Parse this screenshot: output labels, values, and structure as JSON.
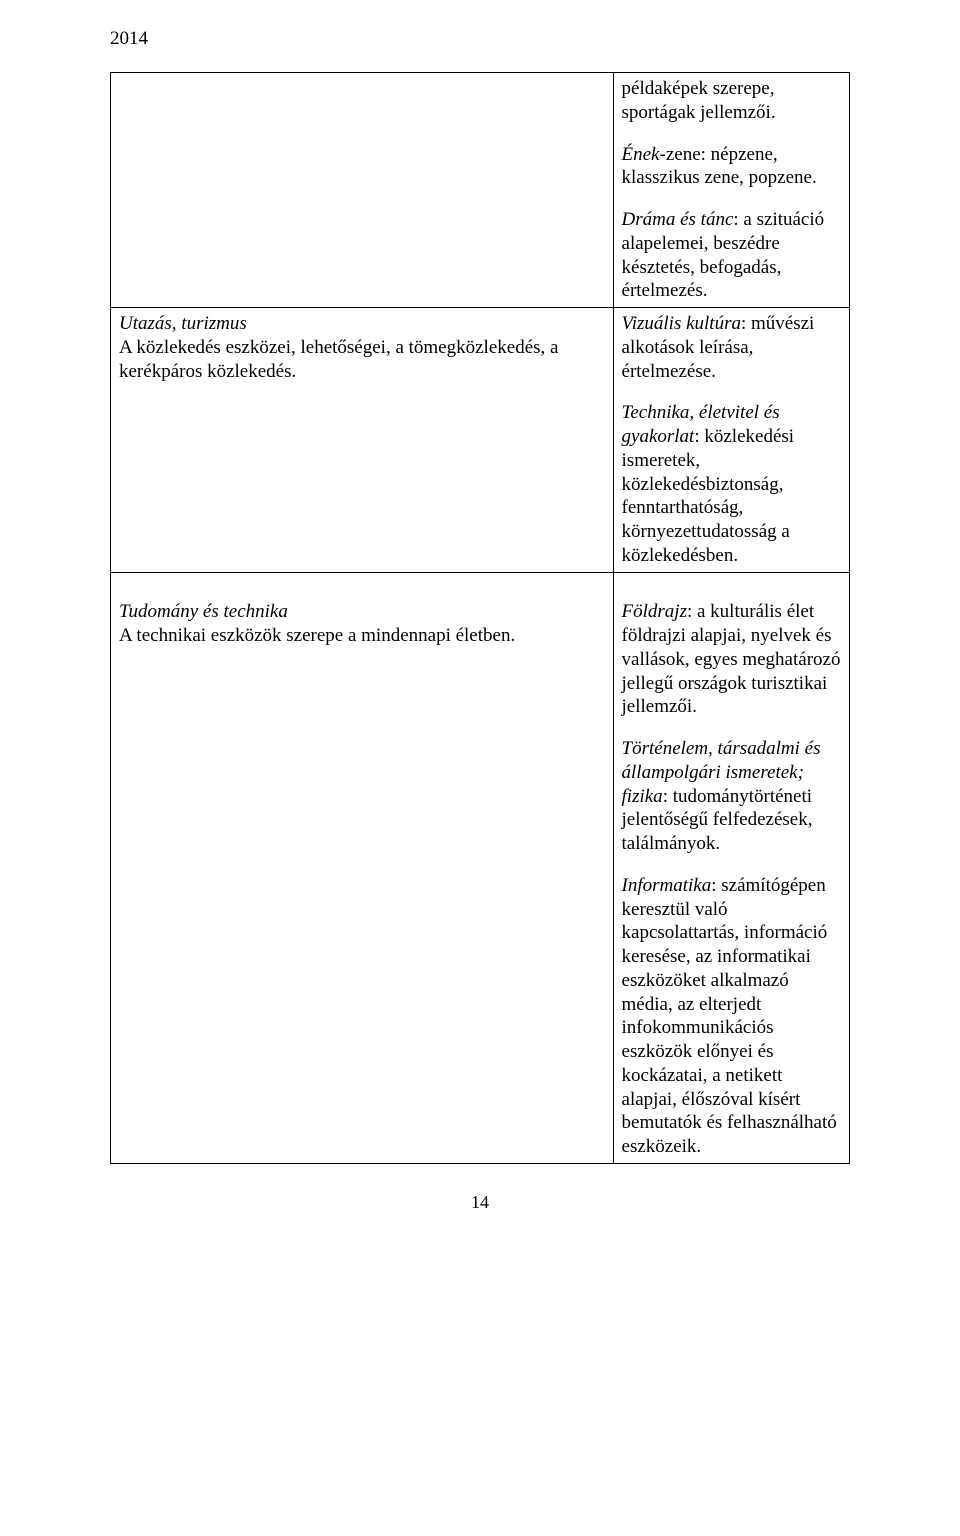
{
  "header": {
    "year": "2014"
  },
  "footer": {
    "page_number": "14"
  },
  "table": {
    "rows": [
      {
        "left": "",
        "right_blocks": [
          {
            "prefix": "",
            "body": "példaképek szerepe, sportágak jellemzői."
          },
          {
            "prefix": "Ének",
            "body": "-zene: népzene, klasszikus zene, popzene."
          },
          {
            "prefix": "Dráma és tánc",
            "body": ": a szituáció alapelemei, beszédre késztetés, befogadás, értelmezés."
          }
        ]
      },
      {
        "left_title": "Utazás, turizmus",
        "left_body": "A közlekedés eszközei, lehetőségei, a tömegközlekedés, a kerékpáros közlekedés.",
        "right_blocks": [
          {
            "prefix": "Vizuális kultúra",
            "body": ": művészi alkotások leírása, értelmezése."
          },
          {
            "prefix": "Technika, életvitel és gyakorlat",
            "body": ": közlekedési ismeretek, közlekedésbiztonság, fenntarthatóság, környezettudatosság a közlekedésben."
          }
        ]
      },
      {
        "left_title": "Tudomány és technika",
        "left_body": "A technikai eszközök szerepe a mindennapi életben.",
        "right_blocks": [
          {
            "prefix": "Földrajz",
            "body": ": a kulturális élet földrajzi alapjai, nyelvek és vallások, egyes meghatározó jellegű országok turisztikai jellemzői."
          },
          {
            "prefix": "Történelem, társadalmi és állampolgári ismeretek; fizika",
            "body": ": tudománytörténeti jelentőségű felfedezések, találmányok."
          },
          {
            "prefix": "Informatika",
            "body": ": számítógépen keresztül való kapcsolattartás, információ keresése, az informatikai eszközöket alkalmazó média, az elterjedt infokommunikációs eszközök előnyei és kockázatai, a netikett alapjai, élőszóval kísért bemutatók és felhasználható eszközeik."
          }
        ]
      }
    ]
  }
}
